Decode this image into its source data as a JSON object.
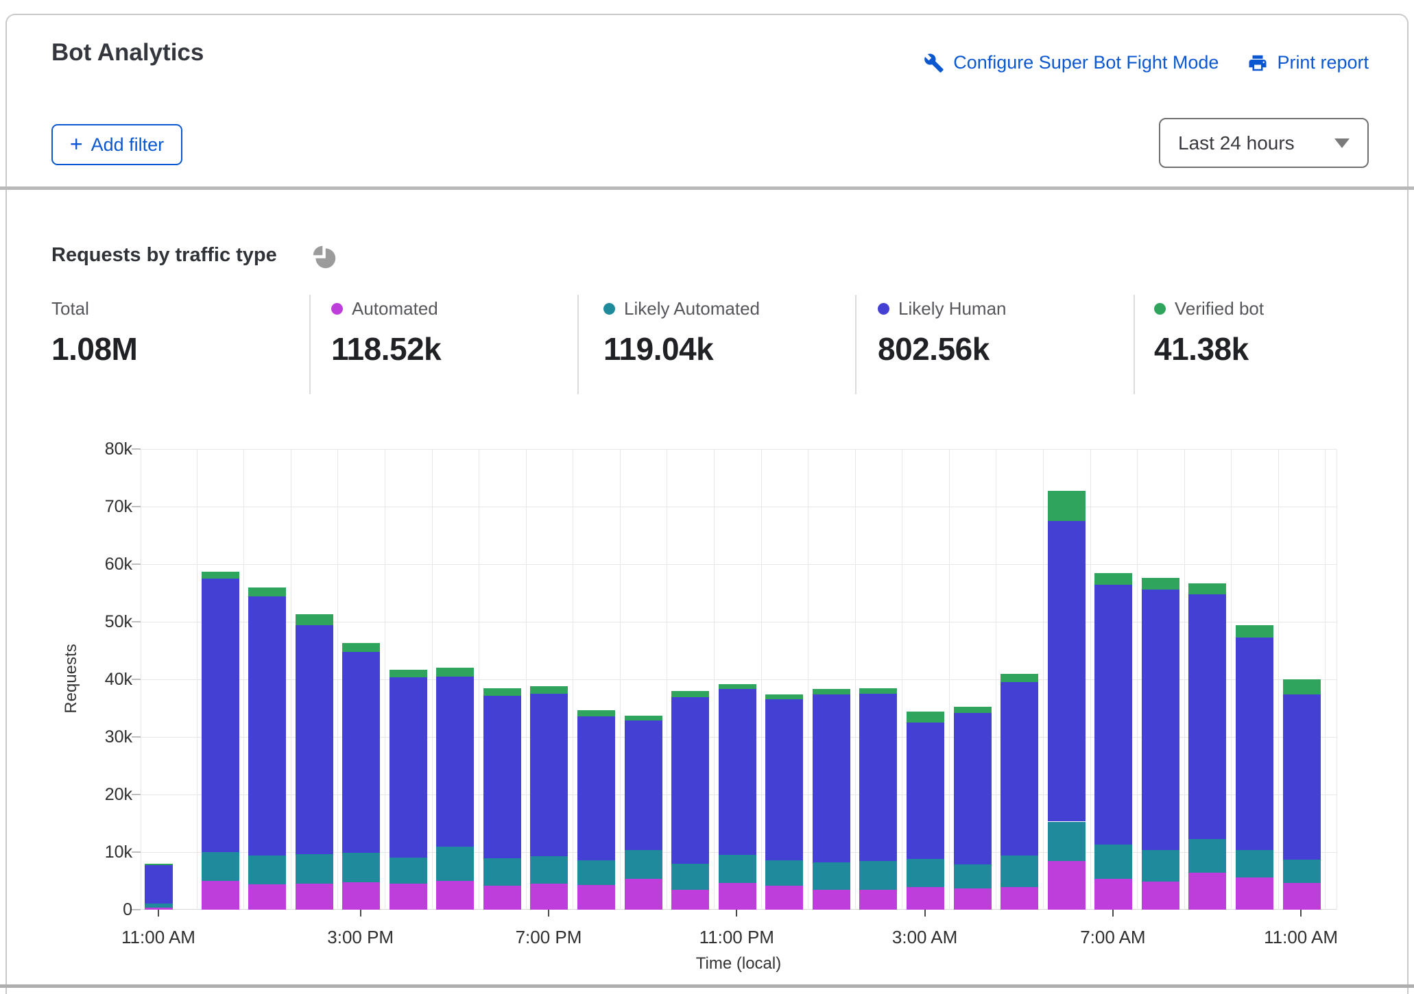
{
  "header": {
    "title": "Bot Analytics",
    "configure_link": "Configure Super Bot Fight Mode",
    "print_link": "Print report",
    "add_filter_plus": "+",
    "add_filter_label": "Add filter",
    "time_range": "Last 24 hours"
  },
  "section": {
    "title": "Requests by traffic type"
  },
  "icons": {
    "configure": "wrench-icon",
    "print": "printer-icon",
    "section": "pie-chart-icon",
    "dropdown": "chevron-down-icon",
    "add_filter": "plus-icon"
  },
  "stats": [
    {
      "label": "Total",
      "value": "1.08M",
      "color": null
    },
    {
      "label": "Automated",
      "value": "118.52k",
      "color": "#be3edb"
    },
    {
      "label": "Likely Automated",
      "value": "119.04k",
      "color": "#1e8a9c"
    },
    {
      "label": "Likely Human",
      "value": "802.56k",
      "color": "#4540d4"
    },
    {
      "label": "Verified bot",
      "value": "41.38k",
      "color": "#2fa45c"
    }
  ],
  "chart_data": {
    "type": "bar",
    "stacked": true,
    "title": "Requests by traffic type",
    "xlabel": "Time (local)",
    "ylabel": "Requests",
    "ylim": [
      0,
      80000
    ],
    "grid": true,
    "ytick_labels": [
      "0",
      "10k",
      "20k",
      "30k",
      "40k",
      "50k",
      "60k",
      "70k",
      "80k"
    ],
    "xtick_labels": [
      "11:00 AM",
      "3:00 PM",
      "7:00 PM",
      "11:00 PM",
      "3:00 AM",
      "7:00 AM",
      "11:00 AM"
    ],
    "series_order": [
      "automated",
      "likely_automated",
      "likely_human",
      "verified_bot"
    ],
    "series_labels": {
      "automated": "Automated",
      "likely_automated": "Likely Automated",
      "likely_human": "Likely Human",
      "verified_bot": "Verified bot"
    },
    "colors": {
      "automated": "#be3edb",
      "likely_automated": "#1e8a9c",
      "likely_human": "#4540d4",
      "verified_bot": "#2fa45c"
    },
    "bars": [
      {
        "time": "11:00 AM",
        "automated": 400,
        "likely_automated": 700,
        "likely_human": 6600,
        "verified_bot": 300
      },
      {
        "time": "12:00 PM",
        "automated": 5000,
        "likely_automated": 5000,
        "likely_human": 47500,
        "verified_bot": 1200
      },
      {
        "time": "1:00 PM",
        "automated": 4400,
        "likely_automated": 5000,
        "likely_human": 45000,
        "verified_bot": 1500
      },
      {
        "time": "2:00 PM",
        "automated": 4500,
        "likely_automated": 5100,
        "likely_human": 39800,
        "verified_bot": 1900
      },
      {
        "time": "3:00 PM",
        "automated": 4800,
        "likely_automated": 5100,
        "likely_human": 34900,
        "verified_bot": 1500
      },
      {
        "time": "4:00 PM",
        "automated": 4500,
        "likely_automated": 4500,
        "likely_human": 31400,
        "verified_bot": 1300
      },
      {
        "time": "5:00 PM",
        "automated": 5000,
        "likely_automated": 5900,
        "likely_human": 29600,
        "verified_bot": 1500
      },
      {
        "time": "6:00 PM",
        "automated": 4200,
        "likely_automated": 4700,
        "likely_human": 28200,
        "verified_bot": 1400
      },
      {
        "time": "7:00 PM",
        "automated": 4500,
        "likely_automated": 4800,
        "likely_human": 28200,
        "verified_bot": 1300
      },
      {
        "time": "8:00 PM",
        "automated": 4300,
        "likely_automated": 4300,
        "likely_human": 25000,
        "verified_bot": 1100
      },
      {
        "time": "9:00 PM",
        "automated": 5300,
        "likely_automated": 5000,
        "likely_human": 22500,
        "verified_bot": 900
      },
      {
        "time": "10:00 PM",
        "automated": 3500,
        "likely_automated": 4500,
        "likely_human": 28900,
        "verified_bot": 1100
      },
      {
        "time": "11:00 PM",
        "automated": 4700,
        "likely_automated": 4800,
        "likely_human": 28800,
        "verified_bot": 900
      },
      {
        "time": "12:00 AM",
        "automated": 4200,
        "likely_automated": 4400,
        "likely_human": 27900,
        "verified_bot": 900
      },
      {
        "time": "1:00 AM",
        "automated": 3500,
        "likely_automated": 4700,
        "likely_human": 29200,
        "verified_bot": 900
      },
      {
        "time": "2:00 AM",
        "automated": 3400,
        "likely_automated": 5000,
        "likely_human": 29100,
        "verified_bot": 1000
      },
      {
        "time": "3:00 AM",
        "automated": 3900,
        "likely_automated": 4900,
        "likely_human": 23700,
        "verified_bot": 1900
      },
      {
        "time": "4:00 AM",
        "automated": 3700,
        "likely_automated": 4200,
        "likely_human": 26300,
        "verified_bot": 1000
      },
      {
        "time": "5:00 AM",
        "automated": 3900,
        "likely_automated": 5500,
        "likely_human": 30100,
        "verified_bot": 1400
      },
      {
        "time": "6:00 AM",
        "automated": 8500,
        "likely_automated": 6800,
        "likely_human": 52200,
        "verified_bot": 5200
      },
      {
        "time": "7:00 AM",
        "automated": 5300,
        "likely_automated": 6000,
        "likely_human": 45100,
        "verified_bot": 2000
      },
      {
        "time": "8:00 AM",
        "automated": 4900,
        "likely_automated": 5500,
        "likely_human": 45200,
        "verified_bot": 2000
      },
      {
        "time": "9:00 AM",
        "automated": 6400,
        "likely_automated": 5900,
        "likely_human": 42500,
        "verified_bot": 1900
      },
      {
        "time": "10:00 AM",
        "automated": 5600,
        "likely_automated": 4800,
        "likely_human": 36900,
        "verified_bot": 2100
      },
      {
        "time": "11:00 AM",
        "automated": 4600,
        "likely_automated": 4100,
        "likely_human": 28700,
        "verified_bot": 2600
      }
    ]
  }
}
